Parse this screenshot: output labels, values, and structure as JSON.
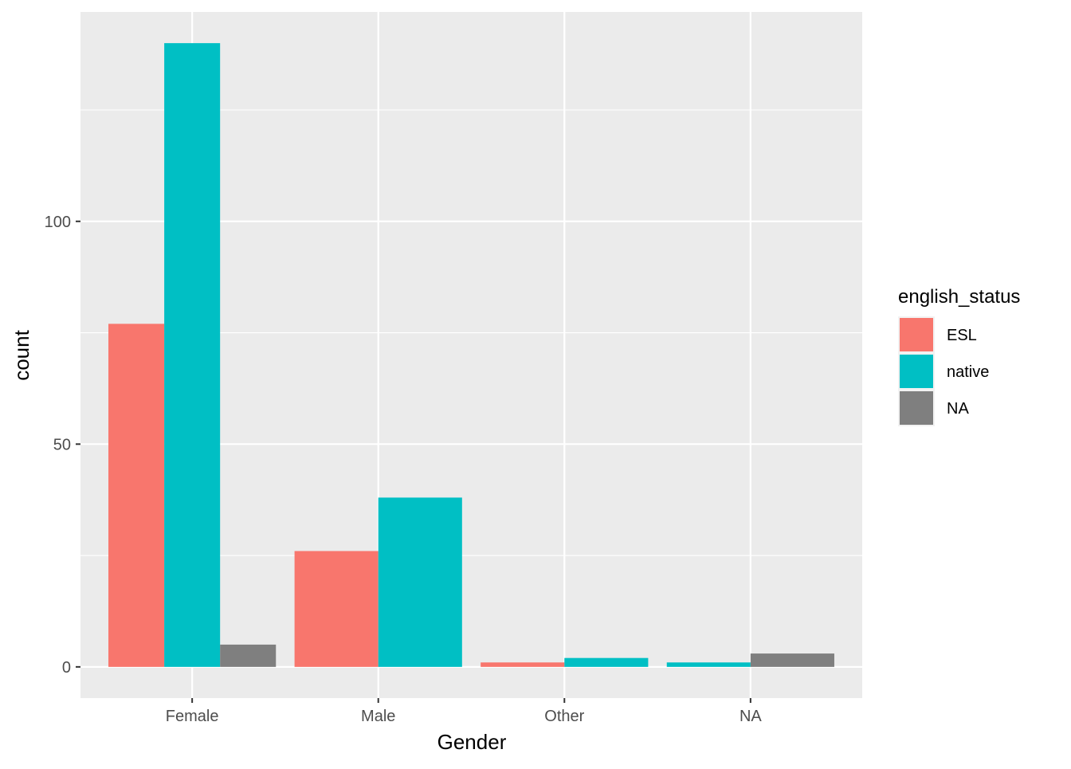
{
  "chart_data": {
    "type": "bar",
    "position": "dodge",
    "title": "",
    "xlabel": "Gender",
    "ylabel": "count",
    "categories": [
      "Female",
      "Male",
      "Other",
      "NA"
    ],
    "ylim": [
      -7,
      147
    ],
    "yticks": [
      0,
      50,
      100
    ],
    "grid": true,
    "legend": {
      "title": "english_status",
      "placement": "right",
      "entries": [
        {
          "label": "ESL",
          "color": "#F8766D"
        },
        {
          "label": "native",
          "color": "#00BFC4"
        },
        {
          "label": "NA",
          "color": "#7F7F7F"
        }
      ]
    },
    "bars": [
      {
        "category": "Female",
        "group": "ESL",
        "value": 77
      },
      {
        "category": "Female",
        "group": "native",
        "value": 140
      },
      {
        "category": "Female",
        "group": "NA",
        "value": 5
      },
      {
        "category": "Male",
        "group": "ESL",
        "value": 26
      },
      {
        "category": "Male",
        "group": "native",
        "value": 38
      },
      {
        "category": "Other",
        "group": "ESL",
        "value": 1
      },
      {
        "category": "Other",
        "group": "native",
        "value": 2
      },
      {
        "category": "NA",
        "group": "native",
        "value": 1
      },
      {
        "category": "NA",
        "group": "NA",
        "value": 3
      }
    ]
  }
}
